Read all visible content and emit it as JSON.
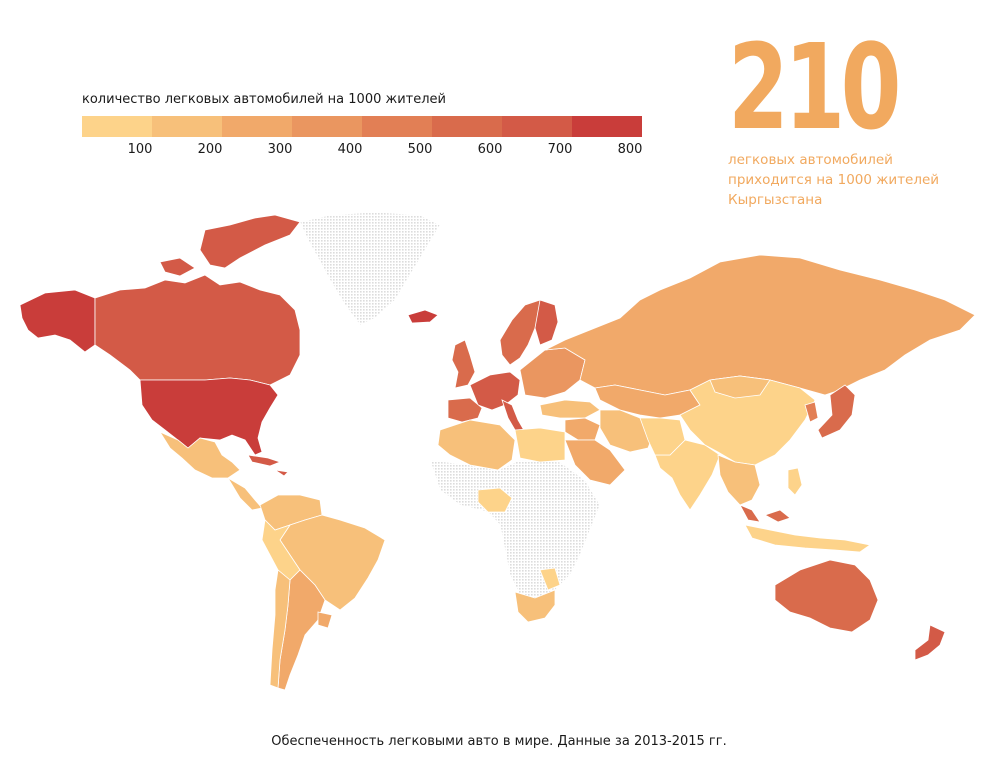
{
  "legend": {
    "title": "количество легковых автомобилей на 1000 жителей",
    "colors": [
      "#fdd38a",
      "#f7c07a",
      "#f1a96a",
      "#ea9660",
      "#e27f55",
      "#d96b4c",
      "#d35a47",
      "#c93d3a"
    ],
    "ticks": [
      "100",
      "200",
      "300",
      "400",
      "500",
      "600",
      "700",
      "800"
    ]
  },
  "highlight": {
    "number": "210",
    "caption_lines": [
      "легковых автомобилей",
      "приходится на 1000 жителей",
      "Кыргызстана"
    ],
    "color": "#f1a95f"
  },
  "map": {
    "no_data_color": "#e4e4e4",
    "regions": [
      {
        "name": "alaska",
        "value": 790
      },
      {
        "name": "canada",
        "value": 650
      },
      {
        "name": "canadian-arctic",
        "value": 650
      },
      {
        "name": "usa",
        "value": 800
      },
      {
        "name": "mexico",
        "value": 200
      },
      {
        "name": "central-america",
        "value": 120
      },
      {
        "name": "caribbean",
        "value": 700
      },
      {
        "name": "venezuela-colombia",
        "value": 120
      },
      {
        "name": "brazil",
        "value": 200
      },
      {
        "name": "peru-bolivia",
        "value": 80
      },
      {
        "name": "argentina",
        "value": 300
      },
      {
        "name": "chile",
        "value": 200
      },
      {
        "name": "uruguay",
        "value": 260
      },
      {
        "name": "greenland",
        "value": null
      },
      {
        "name": "iceland",
        "value": 720
      },
      {
        "name": "uk",
        "value": 560
      },
      {
        "name": "scandinavia",
        "value": 560
      },
      {
        "name": "finland",
        "value": 640
      },
      {
        "name": "western-europe",
        "value": 620
      },
      {
        "name": "iberia",
        "value": 580
      },
      {
        "name": "italy",
        "value": 690
      },
      {
        "name": "eastern-europe",
        "value": 360
      },
      {
        "name": "russia",
        "value": 290
      },
      {
        "name": "kazakhstan-central-asia",
        "value": 220
      },
      {
        "name": "turkey",
        "value": 170
      },
      {
        "name": "middle-east",
        "value": 230
      },
      {
        "name": "arabia",
        "value": 220
      },
      {
        "name": "iran",
        "value": 180
      },
      {
        "name": "north-africa",
        "value": 110
      },
      {
        "name": "libya-egypt",
        "value": 80
      },
      {
        "name": "nigeria",
        "value": 60
      },
      {
        "name": "southern-africa",
        "value": 170
      },
      {
        "name": "mozambique-zimbabwe",
        "value": 90
      },
      {
        "name": "india",
        "value": 50
      },
      {
        "name": "china",
        "value": 100
      },
      {
        "name": "mongolia",
        "value": 130
      },
      {
        "name": "southeast-asia",
        "value": 170
      },
      {
        "name": "malaysia",
        "value": 520
      },
      {
        "name": "indonesia",
        "value": 90
      },
      {
        "name": "philippines",
        "value": 60
      },
      {
        "name": "japan",
        "value": 600
      },
      {
        "name": "korea",
        "value": 450
      },
      {
        "name": "australia",
        "value": 560
      },
      {
        "name": "new-zealand",
        "value": 650
      },
      {
        "name": "sub-saharan-africa",
        "value": null
      },
      {
        "name": "afghanistan-pakistan",
        "value": 60
      }
    ]
  },
  "footer": "Обеспеченность легковыми авто в мире. Данные за 2013-2015 гг."
}
